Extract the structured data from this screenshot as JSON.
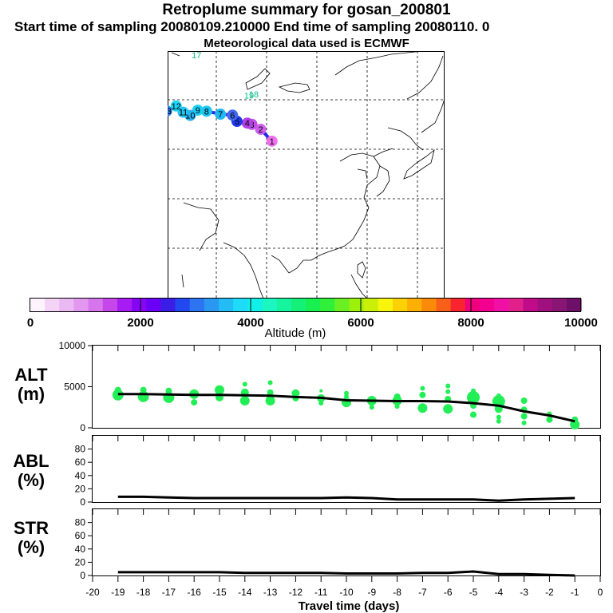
{
  "header": {
    "title": "Retroplume summary for gosan_200801",
    "sampling_line": "Start time of sampling 20080109.210000     End time of sampling 20080110.    0",
    "met_line": "Meteorological data used is ECMWF"
  },
  "map": {
    "track_color": "#2a28e6",
    "points": [
      {
        "label": "1",
        "lon": 126.5,
        "lat": 33.6,
        "color": "#ef70ee"
      },
      {
        "label": "2",
        "lon": 122.0,
        "lat": 38.4,
        "color": "#d060ee"
      },
      {
        "label": "3",
        "lon": 118.5,
        "lat": 40.4,
        "color": "#c050e8"
      },
      {
        "label": "4",
        "lon": 116.7,
        "lat": 40.9,
        "color": "#b040e6"
      },
      {
        "label": "5",
        "lon": 112.6,
        "lat": 41.6,
        "color": "#2038ea"
      },
      {
        "label": "6",
        "lon": 110.8,
        "lat": 44.1,
        "color": "#4468f0"
      },
      {
        "label": "7",
        "lon": 106.0,
        "lat": 44.5,
        "color": "#20b8f2"
      },
      {
        "label": "8",
        "lon": 100.5,
        "lat": 45.7,
        "color": "#1cc8f4"
      },
      {
        "label": "9",
        "lon": 97.0,
        "lat": 46.1,
        "color": "#1ad0f6"
      },
      {
        "label": "10",
        "lon": 94.0,
        "lat": 44.0,
        "color": "#2ab0f0"
      },
      {
        "label": "11",
        "lon": 91.2,
        "lat": 45.3,
        "color": "#22c4f4"
      },
      {
        "label": "12",
        "lon": 88.4,
        "lat": 47.8,
        "color": "#1ad6f8"
      },
      {
        "label": "13",
        "lon": 84.6,
        "lat": 45.8,
        "color": "#2a7ae8"
      }
    ],
    "extra_labels": [
      {
        "label": "17",
        "lon": 96.5,
        "lat": 68.4,
        "color": "#10b880"
      },
      {
        "label": "19",
        "lon": 117.4,
        "lat": 52.1,
        "color": "#10c090"
      },
      {
        "label": "18",
        "lon": 119.3,
        "lat": 52.6,
        "color": "#10c090"
      }
    ]
  },
  "colorbar": {
    "tick_labels": [
      "0",
      "2000",
      "4000",
      "6000",
      "8000",
      "10000"
    ],
    "axis_label": "Altitude (m)",
    "colors": [
      "#fdf3fd",
      "#f3d3f6",
      "#eab8f3",
      "#e397f0",
      "#d675ec",
      "#c547ea",
      "#a61cf2",
      "#8606f4",
      "#6a00f6",
      "#3a1ee6",
      "#2248f0",
      "#2c74f0",
      "#2a98f0",
      "#24bcf4",
      "#1edcf8",
      "#10f0e8",
      "#1cf6c0",
      "#16f4a0",
      "#14f078",
      "#18f050",
      "#30f03a",
      "#6af022",
      "#9cf00c",
      "#caf00a",
      "#f8f40c",
      "#fcd206",
      "#fcb006",
      "#fc8a0a",
      "#f8601a",
      "#f8242e",
      "#f0007a",
      "#f40090",
      "#f010a6",
      "#e2208c",
      "#c00c88",
      "#a0107e",
      "#8a1674",
      "#6e1068"
    ]
  },
  "panels": {
    "alt": {
      "label_line1": "ALT",
      "label_line2": "(m)",
      "yticks": [
        "10000",
        "5000",
        "0"
      ]
    },
    "abl": {
      "label_line1": "ABL",
      "label_line2": "(%)",
      "yticks": [
        "80",
        "60",
        "40",
        "20",
        "0"
      ]
    },
    "str": {
      "label_line1": "STR",
      "label_line2": "(%)",
      "yticks": [
        "80",
        "60",
        "40",
        "20",
        "0"
      ]
    },
    "xticks": [
      "-20",
      "-19",
      "-18",
      "-17",
      "-16",
      "-15",
      "-14",
      "-13",
      "-12",
      "-11",
      "-10",
      "-9",
      "-8",
      "-7",
      "-6",
      "-5",
      "-4",
      "-3",
      "-2",
      "-1",
      "0"
    ],
    "xlabel": "Travel time (days)"
  },
  "chart_data": [
    {
      "type": "scatter",
      "title": "ALT (m)",
      "xlabel": "Travel time (days)",
      "ylabel": "Altitude (m)",
      "xlim": [
        -20,
        0
      ],
      "ylim": [
        0,
        10000
      ],
      "mean_line": {
        "x": [
          -19,
          -18,
          -17,
          -16,
          -15,
          -14,
          -13,
          -12,
          -11,
          -10,
          -9,
          -8,
          -7,
          -6,
          -5,
          -4,
          -3,
          -2,
          -1
        ],
        "y": [
          4100,
          4100,
          4050,
          4000,
          4000,
          3950,
          3900,
          3750,
          3650,
          3350,
          3300,
          3250,
          3250,
          3200,
          3000,
          2700,
          2000,
          1500,
          800
        ]
      },
      "series": [
        {
          "name": "clusters",
          "color": "#22ee55",
          "points": [
            [
              -19,
              4000,
              7
            ],
            [
              -19,
              4600,
              4
            ],
            [
              -18,
              3800,
              7
            ],
            [
              -18,
              4600,
              4
            ],
            [
              -17,
              3700,
              7
            ],
            [
              -17,
              4500,
              4
            ],
            [
              -16,
              4100,
              6
            ],
            [
              -16,
              3100,
              4
            ],
            [
              -15,
              4600,
              6
            ],
            [
              -15,
              3700,
              5
            ],
            [
              -14,
              3300,
              6
            ],
            [
              -14,
              4300,
              5
            ],
            [
              -14,
              5300,
              3
            ],
            [
              -13,
              3300,
              6
            ],
            [
              -13,
              4300,
              4
            ],
            [
              -13,
              5500,
              3
            ],
            [
              -12,
              4200,
              5
            ],
            [
              -12,
              3600,
              4
            ],
            [
              -11,
              3600,
              5
            ],
            [
              -11,
              3000,
              3
            ],
            [
              -11,
              4500,
              2
            ],
            [
              -10,
              3100,
              6
            ],
            [
              -10,
              4200,
              3
            ],
            [
              -10,
              3800,
              3
            ],
            [
              -9,
              3300,
              6
            ],
            [
              -9,
              2500,
              3
            ],
            [
              -8,
              3300,
              6
            ],
            [
              -8,
              3800,
              4
            ],
            [
              -8,
              2600,
              3
            ],
            [
              -7,
              2400,
              6
            ],
            [
              -7,
              4000,
              4
            ],
            [
              -7,
              4800,
              3
            ],
            [
              -6,
              2300,
              6
            ],
            [
              -6,
              3500,
              4
            ],
            [
              -6,
              4400,
              3
            ],
            [
              -6,
              5100,
              3
            ],
            [
              -5,
              3700,
              8
            ],
            [
              -5,
              2700,
              4
            ],
            [
              -5,
              1600,
              4
            ],
            [
              -5,
              4500,
              3
            ],
            [
              -4,
              3200,
              8
            ],
            [
              -4,
              2300,
              5
            ],
            [
              -4,
              1300,
              3
            ],
            [
              -4,
              3900,
              3
            ],
            [
              -4,
              800,
              3
            ],
            [
              -3,
              3300,
              4
            ],
            [
              -3,
              2200,
              4
            ],
            [
              -3,
              1400,
              4
            ],
            [
              -3,
              600,
              3
            ],
            [
              -2,
              1000,
              4
            ],
            [
              -2,
              1700,
              3
            ],
            [
              -1,
              400,
              6
            ],
            [
              -1,
              1000,
              4
            ],
            [
              -1,
              200,
              3
            ]
          ]
        }
      ]
    },
    {
      "type": "line",
      "title": "ABL (%)",
      "xlabel": "Travel time (days)",
      "ylabel": "ABL (%)",
      "xlim": [
        -20,
        0
      ],
      "ylim": [
        0,
        100
      ],
      "x": [
        -19,
        -18,
        -17,
        -16,
        -15,
        -14,
        -13,
        -12,
        -11,
        -10,
        -9,
        -8,
        -7,
        -6,
        -5,
        -4,
        -3,
        -2,
        -1
      ],
      "y": [
        8,
        8,
        7,
        6,
        6,
        6,
        6,
        6,
        6,
        7,
        6,
        4,
        4,
        4,
        4,
        2,
        4,
        5,
        6
      ]
    },
    {
      "type": "line",
      "title": "STR (%)",
      "xlabel": "Travel time (days)",
      "ylabel": "STR (%)",
      "xlim": [
        -20,
        0
      ],
      "ylim": [
        0,
        100
      ],
      "x": [
        -19,
        -18,
        -17,
        -16,
        -15,
        -14,
        -13,
        -12,
        -11,
        -10,
        -9,
        -8,
        -7,
        -6,
        -5,
        -4,
        -3,
        -2,
        -1
      ],
      "y": [
        5,
        5,
        5,
        5,
        5,
        4,
        4,
        4,
        4,
        3,
        3,
        3,
        4,
        4,
        6,
        2,
        2,
        1,
        0
      ]
    }
  ]
}
